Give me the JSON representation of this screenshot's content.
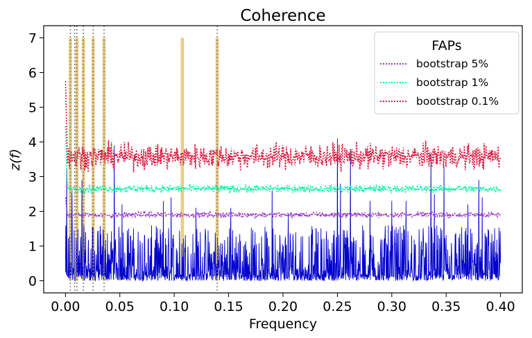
{
  "chart_data": {
    "type": "line",
    "title": "Coherence",
    "xlabel": "Frequency",
    "ylabel": "z(f)",
    "xlim": [
      -0.02,
      0.42
    ],
    "ylim": [
      -0.35,
      7.35
    ],
    "xticks": [
      {
        "v": 0.0,
        "label": "0.00"
      },
      {
        "v": 0.05,
        "label": "0.05"
      },
      {
        "v": 0.1,
        "label": "0.10"
      },
      {
        "v": 0.15,
        "label": "0.15"
      },
      {
        "v": 0.2,
        "label": "0.20"
      },
      {
        "v": 0.25,
        "label": "0.25"
      },
      {
        "v": 0.3,
        "label": "0.30"
      },
      {
        "v": 0.35,
        "label": "0.35"
      },
      {
        "v": 0.4,
        "label": "0.40"
      }
    ],
    "yticks": [
      {
        "v": 0,
        "label": "0"
      },
      {
        "v": 1,
        "label": "1"
      },
      {
        "v": 2,
        "label": "2"
      },
      {
        "v": 3,
        "label": "3"
      },
      {
        "v": 4,
        "label": "4"
      },
      {
        "v": 5,
        "label": "5"
      },
      {
        "v": 6,
        "label": "6"
      },
      {
        "v": 7,
        "label": "7"
      }
    ],
    "grid": false,
    "legend": {
      "title": "FAPs",
      "placement": "top-right"
    },
    "colors": {
      "coherence": "#0000cc",
      "fap5": "#9b30c8",
      "fap1": "#00f0a0",
      "fap01": "#dc143c",
      "highlight": "#e8c77a",
      "reference": "#808080"
    },
    "highlight_bars": [
      {
        "x": 0.0045,
        "top": 7.0
      },
      {
        "x": 0.0105,
        "top": 7.0
      },
      {
        "x": 0.0165,
        "top": 7.0
      },
      {
        "x": 0.0255,
        "top": 7.0
      },
      {
        "x": 0.0355,
        "top": 7.0
      },
      {
        "x": 0.1075,
        "top": 7.0
      },
      {
        "x": 0.1395,
        "top": 7.0
      }
    ],
    "reference_lines": [
      0.0045,
      0.0085,
      0.0105,
      0.0165,
      0.0255,
      0.0355,
      0.1395
    ],
    "series": [
      {
        "name": "bootstrap 5%",
        "key": "fap5",
        "level": 1.9,
        "noise": 0.035,
        "start": 2.4
      },
      {
        "name": "bootstrap 1%",
        "key": "fap1",
        "level": 2.65,
        "noise": 0.05,
        "start": 4.45
      },
      {
        "name": "bootstrap 0.1%",
        "key": "fap01",
        "level": 3.58,
        "noise": 0.17,
        "start": 5.75
      }
    ],
    "coherence": {
      "x_range": [
        0.0,
        0.4
      ],
      "typical_max": 1.6,
      "peaks": [
        {
          "x": 0.001,
          "y": 3.2
        },
        {
          "x": 0.006,
          "y": 2.6
        },
        {
          "x": 0.015,
          "y": 2.9
        },
        {
          "x": 0.045,
          "y": 3.9
        },
        {
          "x": 0.052,
          "y": 2.2
        },
        {
          "x": 0.09,
          "y": 2.3
        },
        {
          "x": 0.097,
          "y": 2.4
        },
        {
          "x": 0.12,
          "y": 2.1
        },
        {
          "x": 0.152,
          "y": 2.1
        },
        {
          "x": 0.19,
          "y": 2.6
        },
        {
          "x": 0.205,
          "y": 1.9
        },
        {
          "x": 0.25,
          "y": 4.1
        },
        {
          "x": 0.253,
          "y": 2.8
        },
        {
          "x": 0.262,
          "y": 3.8
        },
        {
          "x": 0.28,
          "y": 2.3
        },
        {
          "x": 0.3,
          "y": 2.3
        },
        {
          "x": 0.313,
          "y": 2.3
        },
        {
          "x": 0.336,
          "y": 3.7
        },
        {
          "x": 0.339,
          "y": 2.5
        },
        {
          "x": 0.348,
          "y": 3.3
        },
        {
          "x": 0.37,
          "y": 2.2
        },
        {
          "x": 0.38,
          "y": 2.9
        },
        {
          "x": 0.383,
          "y": 2.4
        }
      ]
    }
  }
}
